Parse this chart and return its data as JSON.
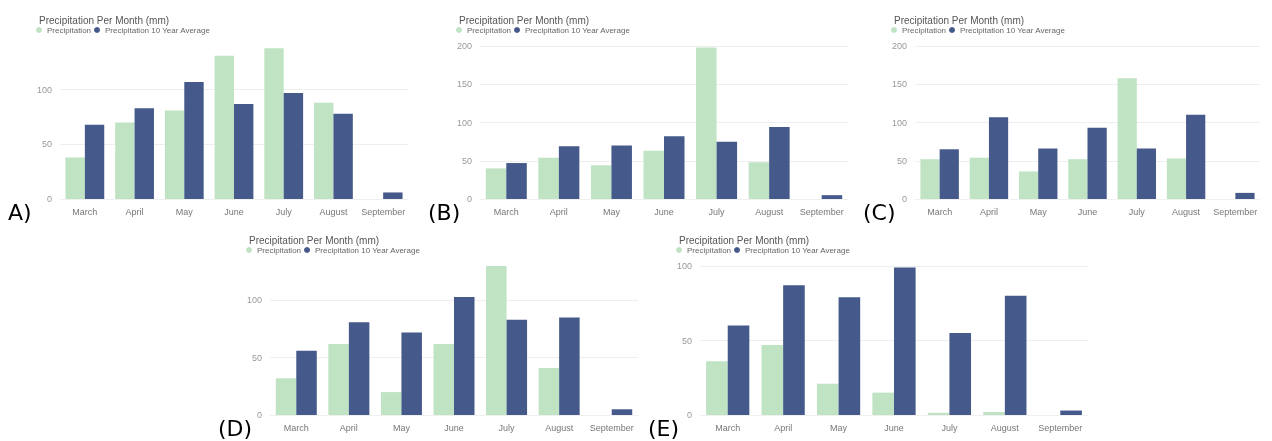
{
  "chart_data": [
    {
      "type": "bar",
      "title": "Precipitation Per Month (mm)",
      "annotations": [
        "A)"
      ],
      "categories": [
        "March",
        "April",
        "May",
        "June",
        "July",
        "August",
        "September"
      ],
      "legend": "top left",
      "grid": "y",
      "ylim": [
        0,
        140
      ],
      "yticks": [
        0,
        50,
        100
      ],
      "series": [
        {
          "name": "Precipitation",
          "color": "#bfe3c3",
          "values": [
            38,
            70,
            81,
            131,
            138,
            88,
            null
          ]
        },
        {
          "name": "Precipitation 10 Year Average",
          "color": "#455a8a",
          "values": [
            68,
            83,
            107,
            87,
            97,
            78,
            6
          ]
        }
      ]
    },
    {
      "type": "bar",
      "title": "Precipitation Per Month (mm)",
      "annotations": [
        "(B)"
      ],
      "categories": [
        "March",
        "April",
        "May",
        "June",
        "July",
        "August",
        "September"
      ],
      "legend": "top left",
      "grid": "y",
      "ylim": [
        0,
        200
      ],
      "yticks": [
        0,
        50,
        100,
        150,
        200
      ],
      "series": [
        {
          "name": "Precipitation",
          "color": "#bfe3c3",
          "values": [
            40,
            54,
            44,
            63,
            198,
            48,
            null
          ]
        },
        {
          "name": "Precipitation 10 Year Average",
          "color": "#455a8a",
          "values": [
            47,
            69,
            70,
            82,
            75,
            94,
            5
          ]
        }
      ]
    },
    {
      "type": "bar",
      "title": "Precipitation Per Month (mm)",
      "annotations": [
        "(C)"
      ],
      "categories": [
        "March",
        "April",
        "May",
        "June",
        "July",
        "August",
        "September"
      ],
      "legend": "top left",
      "grid": "y",
      "ylim": [
        0,
        200
      ],
      "yticks": [
        0,
        50,
        100,
        150,
        200
      ],
      "series": [
        {
          "name": "Precipitation",
          "color": "#bfe3c3",
          "values": [
            52,
            54,
            36,
            52,
            158,
            53,
            null
          ]
        },
        {
          "name": "Precipitation 10 Year Average",
          "color": "#455a8a",
          "values": [
            65,
            107,
            66,
            93,
            66,
            110,
            8
          ]
        }
      ]
    },
    {
      "type": "bar",
      "title": "Precipitation Per Month (mm)",
      "annotations": [
        "(D)"
      ],
      "categories": [
        "March",
        "April",
        "May",
        "June",
        "July",
        "August",
        "September"
      ],
      "legend": "top left",
      "grid": "y",
      "ylim": [
        0,
        130
      ],
      "yticks": [
        0,
        50,
        100
      ],
      "series": [
        {
          "name": "Precipitation",
          "color": "#bfe3c3",
          "values": [
            32,
            62,
            20,
            62,
            130,
            41,
            null
          ]
        },
        {
          "name": "Precipitation 10 Year Average",
          "color": "#455a8a",
          "values": [
            56,
            81,
            72,
            103,
            83,
            85,
            5
          ]
        }
      ]
    },
    {
      "type": "bar",
      "title": "Precipitation Per Month (mm)",
      "annotations": [
        "(E)"
      ],
      "categories": [
        "March",
        "April",
        "May",
        "June",
        "July",
        "August",
        "September"
      ],
      "legend": "top left",
      "grid": "y",
      "ylim": [
        0,
        100
      ],
      "yticks": [
        0,
        50,
        100
      ],
      "series": [
        {
          "name": "Precipitation",
          "color": "#bfe3c3",
          "values": [
            36,
            47,
            21,
            15,
            1.5,
            2,
            null
          ]
        },
        {
          "name": "Precipitation 10 Year Average",
          "color": "#455a8a",
          "values": [
            60,
            87,
            79,
            99,
            55,
            80,
            3
          ]
        }
      ]
    }
  ]
}
